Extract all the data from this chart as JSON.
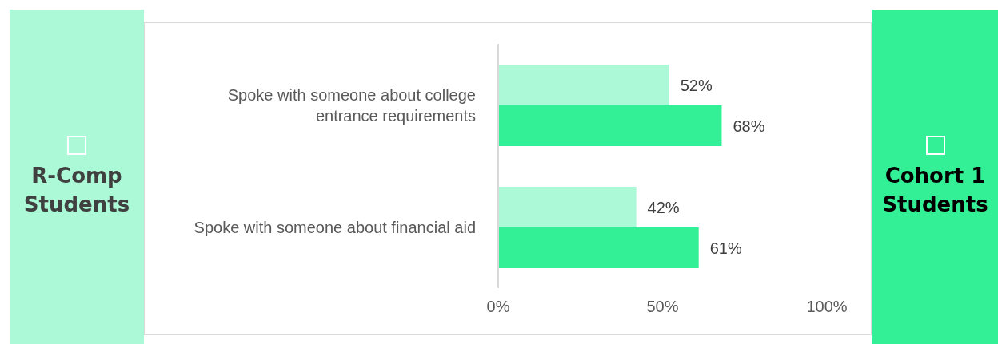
{
  "chart_data": {
    "type": "bar",
    "orientation": "horizontal",
    "categories": [
      "Spoke with someone about college entrance requirements",
      "Spoke with someone about financial aid"
    ],
    "series": [
      {
        "name": "R-Comp Students",
        "color": "#abf9d7",
        "values": [
          52,
          42
        ]
      },
      {
        "name": "Cohort 1 Students",
        "color": "#33f096",
        "values": [
          68,
          61
        ]
      }
    ],
    "xlim": [
      0,
      100
    ],
    "xticks": [
      {
        "value": 0,
        "label": "0%"
      },
      {
        "value": 50,
        "label": "50%"
      },
      {
        "value": 100,
        "label": "100%"
      }
    ],
    "value_labels": [
      [
        "52%",
        "42%"
      ],
      [
        "68%",
        "61%"
      ]
    ],
    "grid": false,
    "legend": "left"
  }
}
